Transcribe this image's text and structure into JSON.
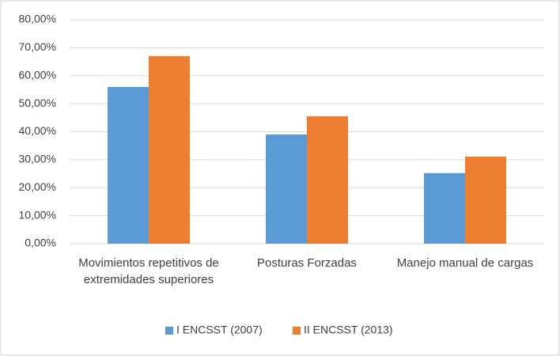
{
  "chart_data": {
    "type": "bar",
    "categories": [
      "Movimientos repetitivos de extremidades superiores",
      "Posturas Forzadas",
      "Manejo manual de cargas"
    ],
    "series": [
      {
        "name": "I ENCSST (2007)",
        "color": "#5b9bd5",
        "values": [
          56.0,
          39.0,
          25.2
        ]
      },
      {
        "name": "II ENCSST (2013)",
        "color": "#ed7d31",
        "values": [
          67.0,
          45.5,
          31.1
        ]
      }
    ],
    "ylim": [
      0,
      80
    ],
    "yticks": [
      {
        "value": 0,
        "label": "0,00%"
      },
      {
        "value": 10,
        "label": "10,00%"
      },
      {
        "value": 20,
        "label": "20,00%"
      },
      {
        "value": 30,
        "label": "30,00%"
      },
      {
        "value": 40,
        "label": "40,00%"
      },
      {
        "value": 50,
        "label": "50,00%"
      },
      {
        "value": 60,
        "label": "60,00%"
      },
      {
        "value": 70,
        "label": "70,00%"
      },
      {
        "value": 80,
        "label": "80,00%"
      }
    ],
    "grid": true,
    "legend": "bottom"
  }
}
